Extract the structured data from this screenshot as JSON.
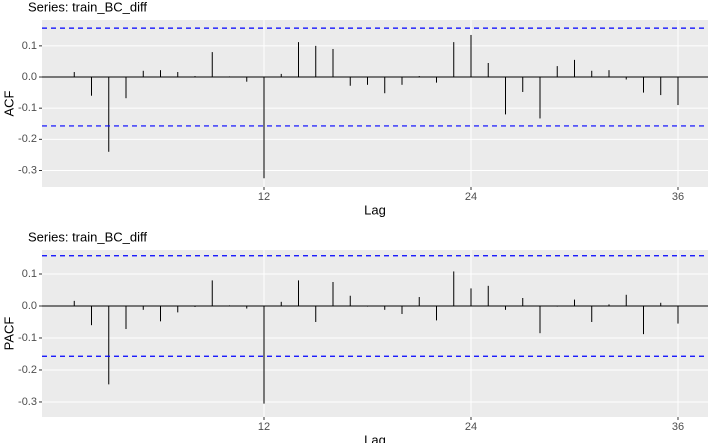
{
  "chart_data": [
    {
      "type": "stem",
      "title": "Series: train_BC_diff",
      "xlabel": "Lag",
      "ylabel": "ACF",
      "x": [
        1,
        2,
        3,
        4,
        5,
        6,
        7,
        8,
        9,
        10,
        11,
        12,
        13,
        14,
        15,
        16,
        17,
        18,
        19,
        20,
        21,
        22,
        23,
        24,
        25,
        26,
        27,
        28,
        29,
        30,
        31,
        32,
        33,
        34,
        35,
        36
      ],
      "values": [
        0.016,
        -0.06,
        -0.24,
        -0.068,
        0.02,
        0.022,
        0.016,
        0.003,
        0.08,
        0.002,
        -0.015,
        -0.325,
        0.01,
        0.112,
        0.1,
        0.09,
        -0.028,
        -0.025,
        -0.052,
        -0.025,
        0.003,
        -0.018,
        0.112,
        0.135,
        0.045,
        -0.12,
        -0.048,
        -0.133,
        0.035,
        0.055,
        0.02,
        0.022,
        -0.008,
        -0.05,
        -0.058,
        -0.09
      ],
      "color": "#000000",
      "bounds": [
        0.157,
        -0.157
      ],
      "bounds_color": "#0000ff",
      "xlim": [
        -0.87,
        37.74
      ],
      "xticks": [
        12,
        24,
        36
      ],
      "ylim": [
        -0.353,
        0.183
      ],
      "yticks": [
        0.1,
        {
          "value": 0,
          "label": "0.0"
        },
        -0.1,
        -0.2,
        -0.3
      ],
      "grid": true
    },
    {
      "type": "stem",
      "title": "Series: train_BC_diff",
      "xlabel": "Lag",
      "ylabel": "PACF",
      "x": [
        1,
        2,
        3,
        4,
        5,
        6,
        7,
        8,
        9,
        10,
        11,
        12,
        13,
        14,
        15,
        16,
        17,
        18,
        19,
        20,
        21,
        22,
        23,
        24,
        25,
        26,
        27,
        28,
        29,
        30,
        31,
        32,
        33,
        34,
        35,
        36
      ],
      "values": [
        0.016,
        -0.06,
        -0.245,
        -0.072,
        -0.012,
        -0.048,
        -0.02,
        -0.003,
        0.08,
        0.002,
        -0.008,
        -0.305,
        0.013,
        0.08,
        -0.05,
        0.075,
        0.032,
        -0.002,
        -0.012,
        -0.025,
        0.028,
        -0.045,
        0.108,
        0.055,
        0.063,
        -0.012,
        0.025,
        -0.085,
        -0.002,
        0.02,
        -0.05,
        0.005,
        0.035,
        -0.088,
        0.01,
        -0.055
      ],
      "color": "#000000",
      "bounds": [
        0.157,
        -0.157
      ],
      "bounds_color": "#0000ff",
      "xlim": [
        -0.87,
        37.74
      ],
      "xticks": [
        12,
        24,
        36
      ],
      "ylim": [
        -0.347,
        0.175
      ],
      "yticks": [
        0.1,
        {
          "value": 0,
          "label": "0.0"
        },
        -0.1,
        -0.2,
        -0.3
      ],
      "grid": true
    }
  ]
}
